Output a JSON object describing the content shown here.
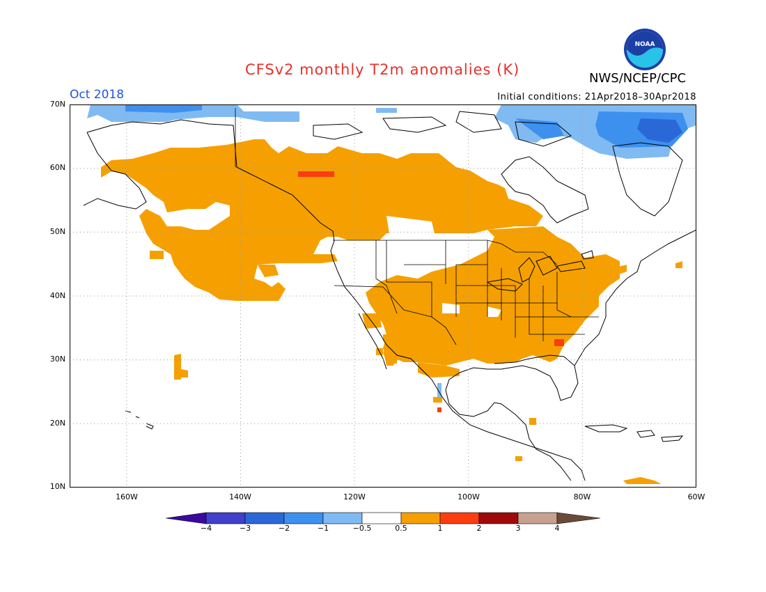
{
  "header": {
    "title": "CFSv2 monthly T2m anomalies (K)",
    "agency": "NWS/NCEP/CPC",
    "month": "Oct 2018",
    "initial_conditions": "Initial conditions: 21Apr2018–30Apr2018",
    "logo_text": "NOAA"
  },
  "axes": {
    "lat_labels": [
      "70N",
      "60N",
      "50N",
      "40N",
      "30N",
      "20N",
      "10N"
    ],
    "lon_labels": [
      "160W",
      "140W",
      "120W",
      "100W",
      "80W",
      "60W"
    ],
    "lat_range": [
      10,
      70
    ],
    "lon_range": [
      -170,
      -60
    ]
  },
  "colorbar": {
    "labels": [
      "−4",
      "−3",
      "−2",
      "−1",
      "−0.5",
      "0.5",
      "1",
      "2",
      "3",
      "4"
    ],
    "colors": [
      "#3a0aa0",
      "#4040cc",
      "#2a68d8",
      "#3e90ee",
      "#80baf2",
      "#ffffff",
      "#f5a000",
      "#fb3d10",
      "#a00a0a",
      "#c8a090",
      "#6b4a3a"
    ]
  },
  "colors": {
    "above_normal": "#f5a000",
    "much_above": "#fb3d10",
    "below_weak": "#80baf2",
    "below": "#3e90ee",
    "below_strong": "#2a68d8"
  }
}
